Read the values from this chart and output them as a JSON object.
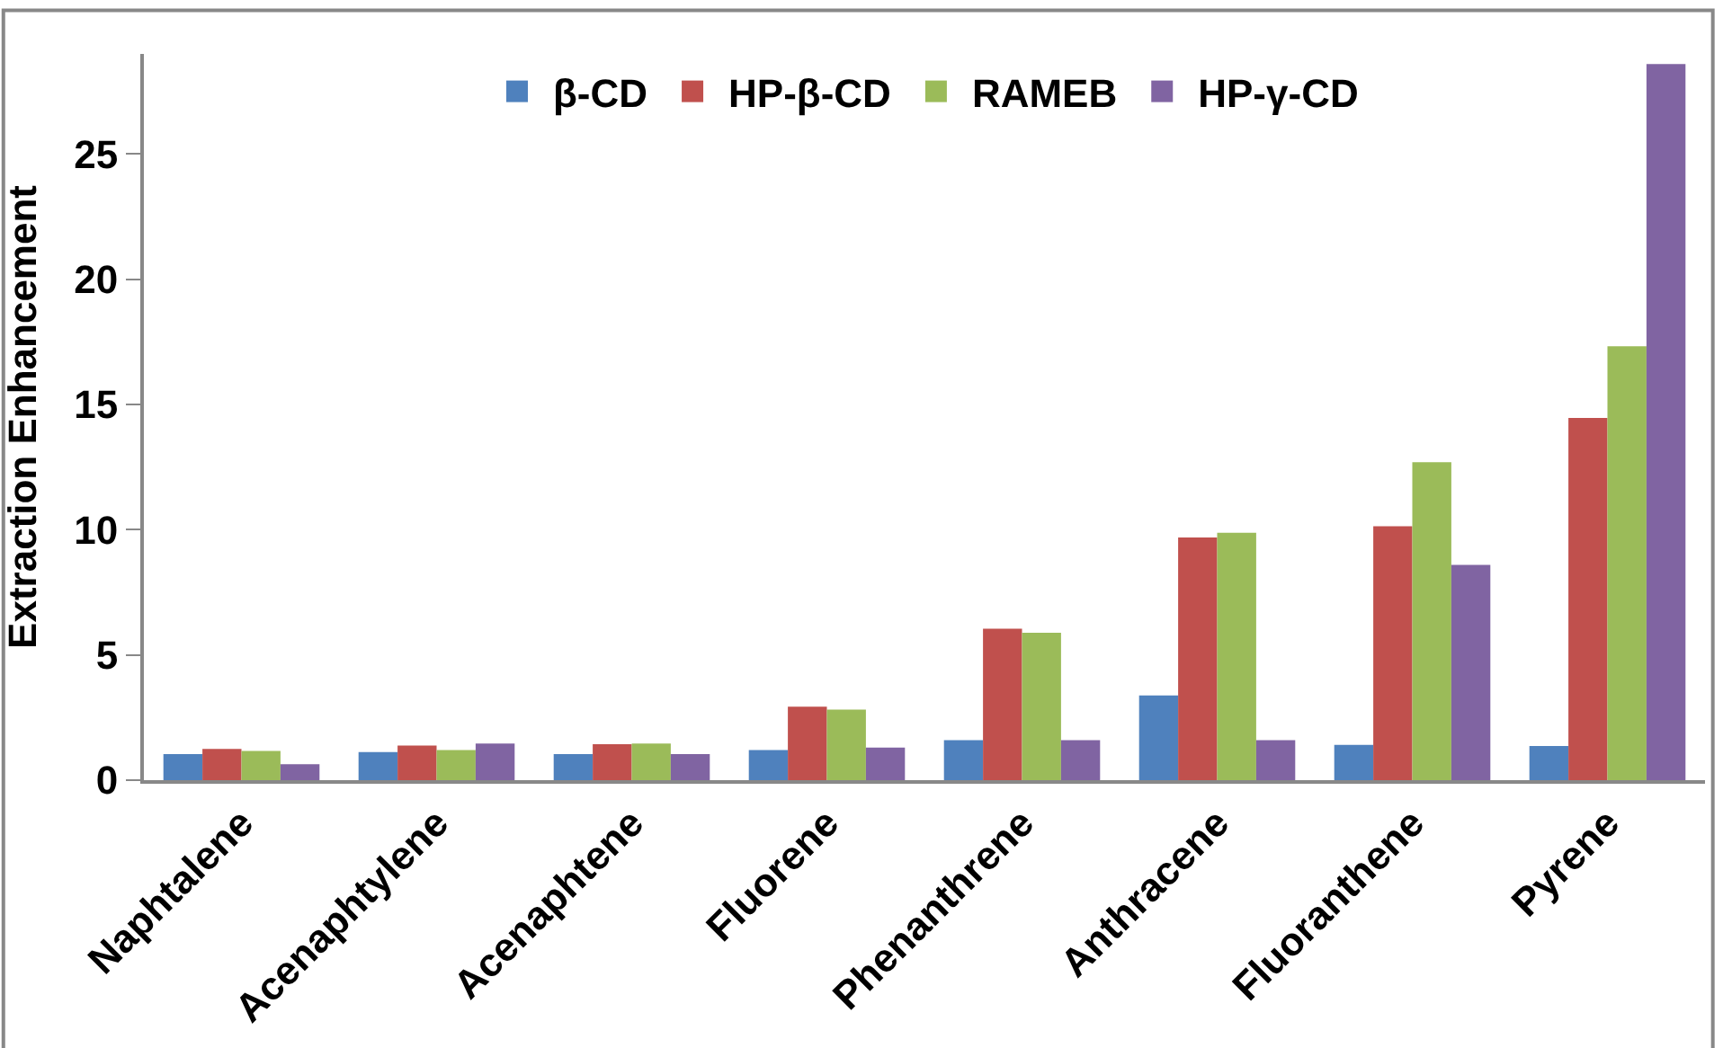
{
  "chart_data": {
    "type": "bar",
    "ylabel": "Extraction Enhancement",
    "categories": [
      "Naphtalene",
      "Acenaphtylene",
      "Acenaphtene",
      "Fluorene",
      "Phenanthrene",
      "Anthracene",
      "Fluoranthene",
      "Pyrene"
    ],
    "series": [
      {
        "name": "β-CD",
        "color": "#4f81bd",
        "values": [
          1.04,
          1.12,
          1.04,
          1.2,
          1.6,
          3.38,
          1.41,
          1.36
        ]
      },
      {
        "name": "HP-β-CD",
        "color": "#c0504d",
        "values": [
          1.25,
          1.38,
          1.44,
          2.93,
          6.05,
          9.69,
          10.14,
          14.46
        ]
      },
      {
        "name": "RAMEB",
        "color": "#9bbb59",
        "values": [
          1.17,
          1.2,
          1.46,
          2.82,
          5.89,
          9.88,
          12.7,
          17.33
        ]
      },
      {
        "name": "HP-γ-CD",
        "color": "#8064a2",
        "values": [
          0.64,
          1.46,
          1.04,
          1.3,
          1.6,
          1.6,
          8.6,
          28.6
        ]
      }
    ],
    "ylim": [
      0,
      29
    ],
    "yticks": [
      0,
      5,
      10,
      15,
      20,
      25
    ],
    "legend": "top"
  }
}
